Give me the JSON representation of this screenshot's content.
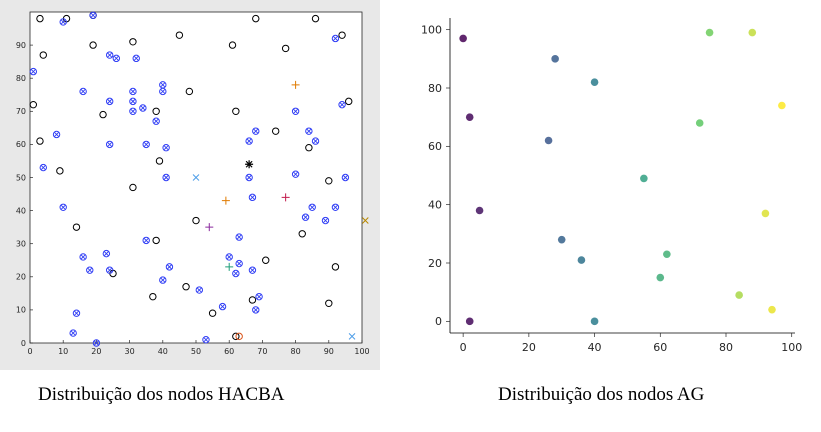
{
  "captions": {
    "left": "Distribuição dos nodos HACBA",
    "right": "Distribuição dos nodos AG"
  },
  "chart_data": [
    {
      "type": "scatter",
      "title": "",
      "xlabel": "",
      "ylabel": "",
      "xlim": [
        0,
        100
      ],
      "ylim": [
        0,
        100
      ],
      "xticks": [
        0,
        10,
        20,
        30,
        40,
        50,
        60,
        70,
        80,
        90,
        100
      ],
      "yticks": [
        0,
        10,
        20,
        30,
        40,
        50,
        60,
        70,
        80,
        90
      ],
      "grid": false,
      "series": [
        {
          "marker": "circle",
          "color": "#000000",
          "points": [
            [
              3,
              98
            ],
            [
              11,
              98
            ],
            [
              19,
              99
            ],
            [
              68,
              98
            ],
            [
              86,
              98
            ],
            [
              1,
              72
            ],
            [
              4,
              87
            ],
            [
              3,
              61
            ],
            [
              19,
              90
            ],
            [
              31,
              91
            ],
            [
              45,
              93
            ],
            [
              77,
              89
            ],
            [
              94,
              93
            ],
            [
              14,
              35
            ],
            [
              9,
              52
            ],
            [
              22,
              69
            ],
            [
              31,
              47
            ],
            [
              39,
              55
            ],
            [
              38,
              70
            ],
            [
              48,
              76
            ],
            [
              62,
              70
            ],
            [
              74,
              64
            ],
            [
              90,
              49
            ],
            [
              96,
              73
            ],
            [
              61,
              90
            ],
            [
              37,
              14
            ],
            [
              38,
              31
            ],
            [
              47,
              17
            ],
            [
              55,
              9
            ],
            [
              50,
              37
            ],
            [
              67,
              13
            ],
            [
              71,
              25
            ],
            [
              82,
              33
            ],
            [
              90,
              12
            ],
            [
              92,
              23
            ],
            [
              62,
              2
            ],
            [
              84,
              59
            ],
            [
              25,
              21
            ]
          ]
        },
        {
          "marker": "circle-x",
          "color": "#2f3df5",
          "points": [
            [
              1,
              82
            ],
            [
              10,
              97
            ],
            [
              19,
              99
            ],
            [
              4,
              53
            ],
            [
              8,
              63
            ],
            [
              10,
              41
            ],
            [
              16,
              76
            ],
            [
              16,
              26
            ],
            [
              18,
              22
            ],
            [
              14,
              9
            ],
            [
              13,
              3
            ],
            [
              20,
              0
            ],
            [
              24,
              87
            ],
            [
              26,
              86
            ],
            [
              24,
              73
            ],
            [
              24,
              60
            ],
            [
              24,
              22
            ],
            [
              23,
              27
            ],
            [
              31,
              76
            ],
            [
              31,
              73
            ],
            [
              32,
              86
            ],
            [
              31,
              70
            ],
            [
              34,
              71
            ],
            [
              35,
              60
            ],
            [
              38,
              67
            ],
            [
              35,
              31
            ],
            [
              40,
              78
            ],
            [
              40,
              76
            ],
            [
              41,
              59
            ],
            [
              41,
              50
            ],
            [
              42,
              23
            ],
            [
              40,
              19
            ],
            [
              51,
              16
            ],
            [
              53,
              1
            ],
            [
              58,
              11
            ],
            [
              60,
              26
            ],
            [
              63,
              24
            ],
            [
              63,
              32
            ],
            [
              62,
              21
            ],
            [
              66,
              61
            ],
            [
              66,
              50
            ],
            [
              67,
              44
            ],
            [
              68,
              64
            ],
            [
              69,
              14
            ],
            [
              68,
              10
            ],
            [
              67,
              22
            ],
            [
              80,
              51
            ],
            [
              80,
              70
            ],
            [
              83,
              38
            ],
            [
              84,
              64
            ],
            [
              85,
              41
            ],
            [
              86,
              61
            ],
            [
              89,
              37
            ],
            [
              92,
              41
            ],
            [
              92,
              92
            ],
            [
              94,
              72
            ],
            [
              95,
              50
            ]
          ]
        },
        {
          "marker": "plus",
          "color": "#e07b00",
          "points": [
            [
              80,
              78
            ],
            [
              59,
              43
            ]
          ]
        },
        {
          "marker": "plus",
          "color": "#c21b4c",
          "points": [
            [
              77,
              44
            ]
          ]
        },
        {
          "marker": "plus",
          "color": "#8a2a9e",
          "points": [
            [
              54,
              35
            ]
          ]
        },
        {
          "marker": "plus",
          "color": "#1f9e7a",
          "points": [
            [
              60,
              23
            ]
          ]
        },
        {
          "marker": "x",
          "color": "#4f9ee8",
          "points": [
            [
              50,
              50
            ],
            [
              97,
              2
            ]
          ]
        },
        {
          "marker": "asterisk",
          "color": "#000000",
          "points": [
            [
              66,
              54
            ]
          ]
        },
        {
          "marker": "x",
          "color": "#b88800",
          "points": [
            [
              101,
              37
            ]
          ]
        },
        {
          "marker": "circle",
          "color": "#d95319",
          "points": [
            [
              63,
              2
            ]
          ]
        }
      ]
    },
    {
      "type": "scatter",
      "title": "",
      "xlabel": "",
      "ylabel": "",
      "xlim": [
        -4,
        101
      ],
      "ylim": [
        -4,
        104
      ],
      "xticks": [
        0,
        20,
        40,
        60,
        80,
        100
      ],
      "yticks": [
        0,
        20,
        40,
        60,
        80,
        100
      ],
      "grid": false,
      "series": [
        {
          "marker": "dot",
          "colormap": "viridis",
          "points": [
            [
              0,
              97
            ],
            [
              2,
              70
            ],
            [
              5,
              38
            ],
            [
              2,
              0
            ],
            [
              28,
              90
            ],
            [
              26,
              62
            ],
            [
              30,
              28
            ],
            [
              36,
              21
            ],
            [
              40,
              82
            ],
            [
              40,
              0
            ],
            [
              55,
              49
            ],
            [
              62,
              23
            ],
            [
              60,
              15
            ],
            [
              72,
              68
            ],
            [
              75,
              99
            ],
            [
              84,
              9
            ],
            [
              88,
              99
            ],
            [
              92,
              37
            ],
            [
              94,
              4
            ],
            [
              97,
              74
            ]
          ]
        }
      ]
    }
  ]
}
